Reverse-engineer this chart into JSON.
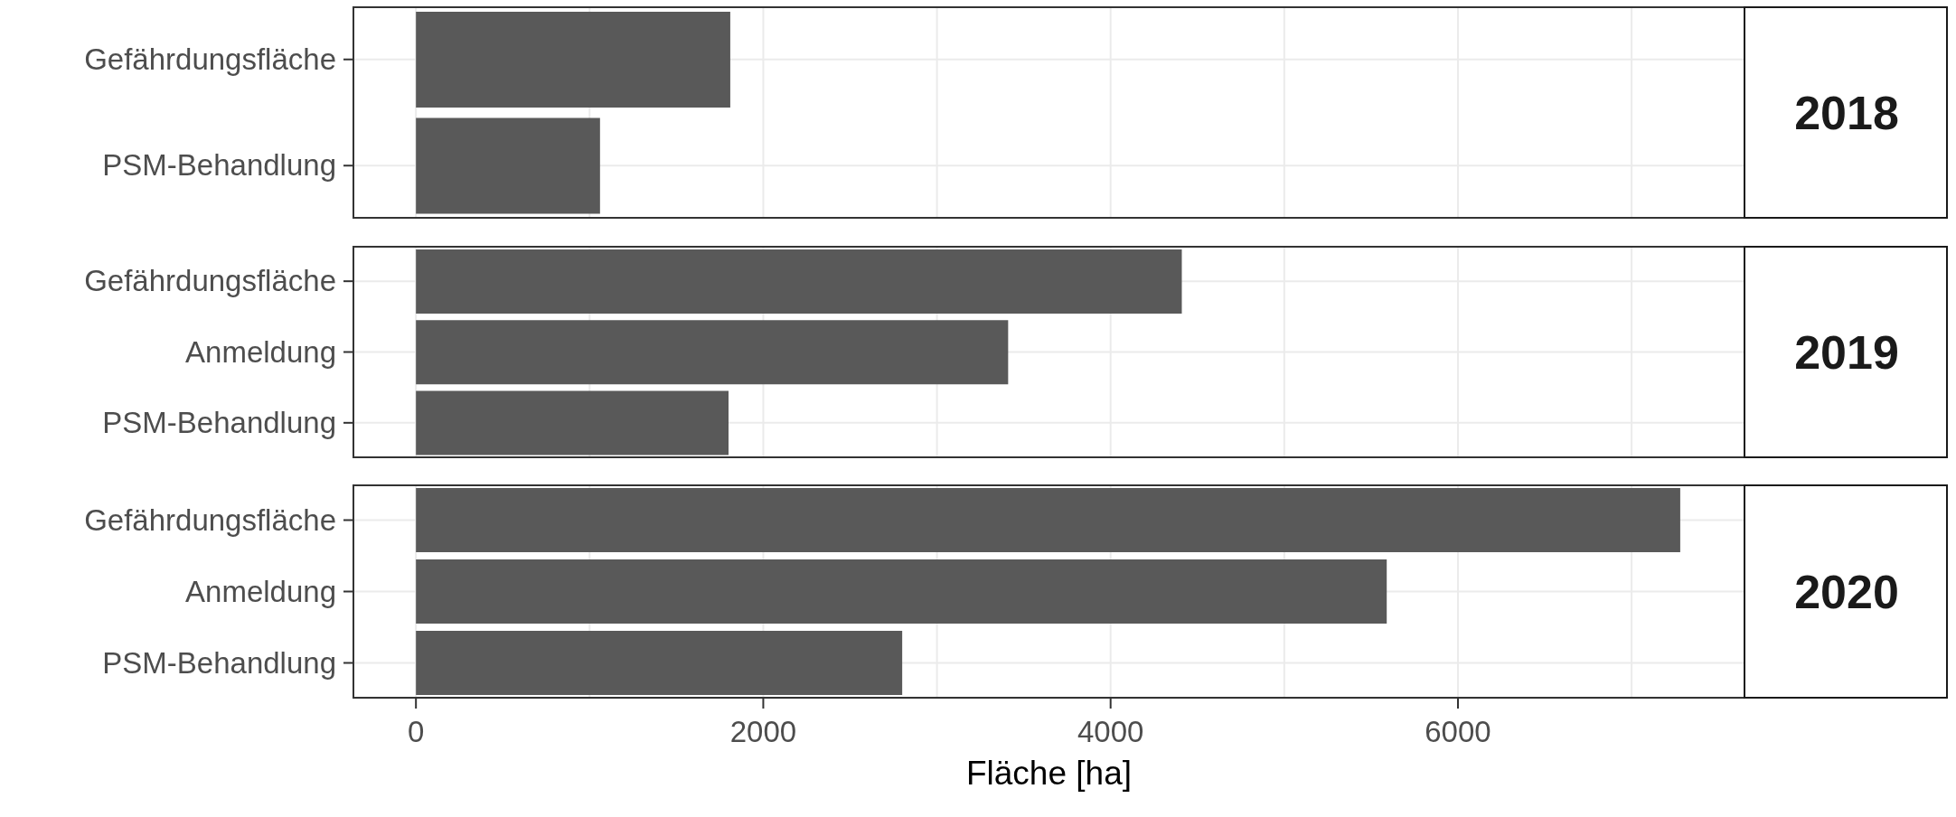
{
  "chart_data": [
    {
      "type": "bar",
      "orientation": "horizontal",
      "annotations": [
        "2018"
      ],
      "categories": [
        "Gefährdungsfläche",
        "PSM-Behandlung"
      ],
      "values": [
        1810,
        1060
      ],
      "color": "#595959",
      "xlim": [
        -360,
        7650
      ],
      "xticks": [
        0,
        {
          "value": 1000,
          "label": null
        },
        2000,
        {
          "value": 3000,
          "label": null
        },
        4000,
        {
          "value": 5000,
          "label": null
        },
        6000,
        {
          "value": 7000,
          "label": null
        }
      ],
      "grid": true,
      "tick_labels": "y"
    },
    {
      "type": "bar",
      "orientation": "horizontal",
      "annotations": [
        "2019"
      ],
      "categories": [
        "Gefährdungsfläche",
        "Anmeldung",
        "PSM-Behandlung"
      ],
      "values": [
        4410,
        3410,
        1800
      ],
      "color": "#595959",
      "xlim": [
        -360,
        7650
      ],
      "xticks": [
        0,
        {
          "value": 1000,
          "label": null
        },
        2000,
        {
          "value": 3000,
          "label": null
        },
        4000,
        {
          "value": 5000,
          "label": null
        },
        6000,
        {
          "value": 7000,
          "label": null
        }
      ],
      "grid": true,
      "tick_labels": "y"
    },
    {
      "type": "bar",
      "orientation": "horizontal",
      "annotations": [
        "2020"
      ],
      "xlabel": "Fläche [ha]",
      "categories": [
        "Gefährdungsfläche",
        "Anmeldung",
        "PSM-Behandlung"
      ],
      "values": [
        7280,
        5590,
        2800
      ],
      "color": "#595959",
      "xlim": [
        -360,
        7650
      ],
      "xticks": [
        0,
        {
          "value": 1000,
          "label": null
        },
        2000,
        {
          "value": 3000,
          "label": null
        },
        4000,
        {
          "value": 5000,
          "label": null
        },
        6000,
        {
          "value": 7000,
          "label": null
        }
      ],
      "grid": true
    }
  ]
}
